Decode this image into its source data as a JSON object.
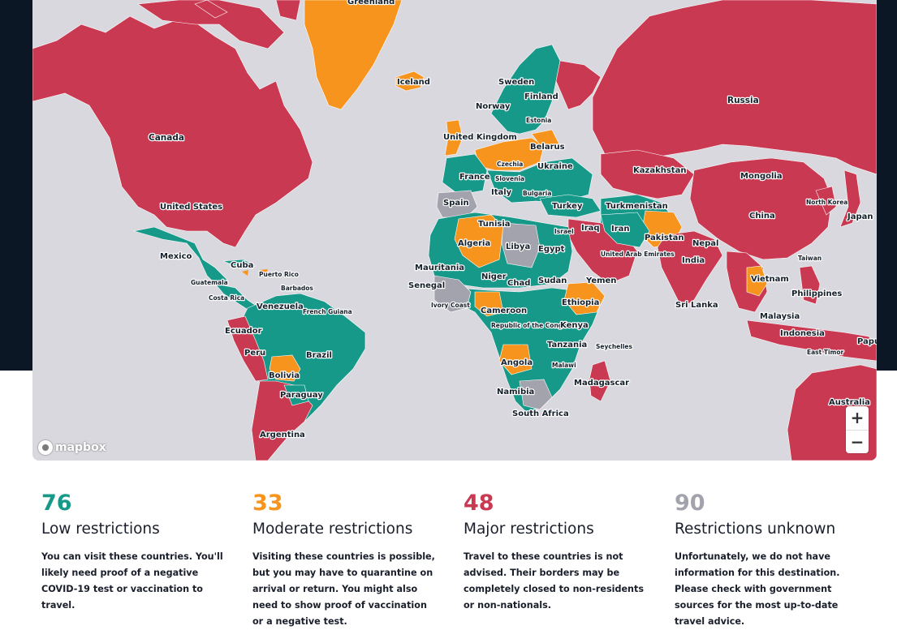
{
  "colors": {
    "low": "#17998a",
    "moderate": "#f7941e",
    "major": "#c93a52",
    "unknown": "#a3a3ad",
    "water": "#d8d8de",
    "page_dark": "#0b1725"
  },
  "map": {
    "attribution": "mapbox",
    "zoom_in_label": "+",
    "zoom_out_label": "−",
    "country_labels": [
      "Greenland",
      "Iceland",
      "Sweden",
      "Finland",
      "Norway",
      "Estonia",
      "Russia",
      "Canada",
      "United Kingdom",
      "Belarus",
      "Czechia",
      "Ukraine",
      "Slovenia",
      "France",
      "Italy",
      "Bulgaria",
      "Kazakhstan",
      "Mongolia",
      "Spain",
      "Turkey",
      "Turkmenistan",
      "North Korea",
      "United States",
      "Tunisia",
      "China",
      "Japan",
      "Israel",
      "Iraq",
      "Iran",
      "Algeria",
      "Libya",
      "Egypt",
      "Pakistan",
      "Nepal",
      "Mexico",
      "Cuba",
      "United Arab Emirates",
      "India",
      "Taiwan",
      "Puerto Rico",
      "Guatemala",
      "Mauritania",
      "Niger",
      "Senegal",
      "Chad",
      "Sudan",
      "Yemen",
      "Vietnam",
      "Barbados",
      "Costa Rica",
      "Philippines",
      "Venezuela",
      "French Guiana",
      "Ivory Coast",
      "Ethiopia",
      "Sri Lanka",
      "Cameroon",
      "Malaysia",
      "Ecuador",
      "Republic of the Congo",
      "Kenya",
      "Indonesia",
      "Seychelles",
      "Tanzania",
      "Papua New Guinea",
      "Peru",
      "Brazil",
      "East Timor",
      "Angola",
      "Malawi",
      "Bolivia",
      "Madagascar",
      "Namibia",
      "Paraguay",
      "South Africa",
      "Australia",
      "Argentina"
    ]
  },
  "legend": [
    {
      "count": "76",
      "title": "Low restrictions",
      "description": "You can visit these countries. You'll likely need proof of a negative COVID-19 test or vaccination to travel.",
      "color": "#17998a"
    },
    {
      "count": "33",
      "title": "Moderate restrictions",
      "description": "Visiting these countries is possible, but you may have to quarantine on arrival or return. You might also need to show proof of vaccination or a negative test.",
      "color": "#f7941e"
    },
    {
      "count": "48",
      "title": "Major restrictions",
      "description": "Travel to these countries is not advised. Their borders may be completely closed to non-residents or non-nationals.",
      "color": "#c93a52"
    },
    {
      "count": "90",
      "title": "Restrictions unknown",
      "description": "Unfortunately, we do not have information for this destination. Please check with government sources for the most up-to-date travel advice.",
      "color": "#a3a3ad"
    }
  ]
}
